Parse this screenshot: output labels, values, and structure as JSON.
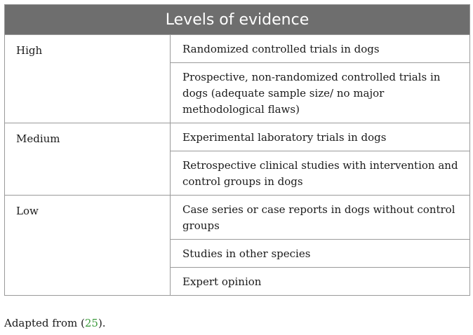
{
  "table": {
    "title": "Levels of evidence",
    "groups": [
      {
        "level": "High",
        "items": [
          "Randomized controlled trials in dogs",
          "Prospective, non-randomized controlled trials in dogs (adequate sample size/ no major methodological flaws)"
        ]
      },
      {
        "level": "Medium",
        "items": [
          "Experimental laboratory trials in dogs",
          "Retrospective clinical studies with intervention and control groups in dogs"
        ]
      },
      {
        "level": "Low",
        "items": [
          "Case series or case reports in dogs without control groups",
          "Studies in other species",
          "Expert opinion"
        ]
      }
    ]
  },
  "caption": {
    "prefix": "Adapted from (",
    "ref": "25",
    "suffix": ")."
  }
}
